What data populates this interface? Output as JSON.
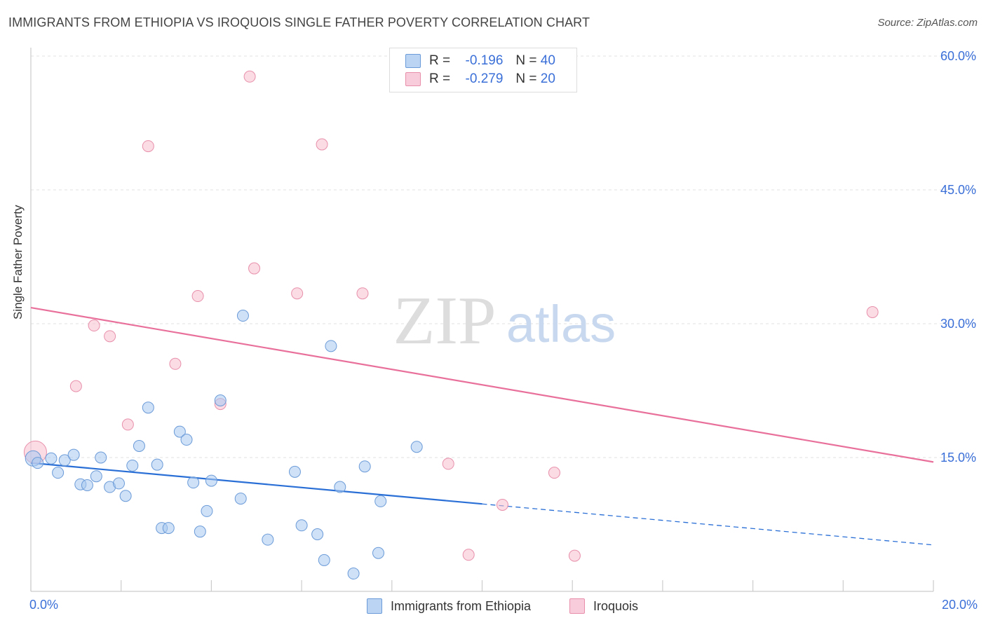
{
  "title": "IMMIGRANTS FROM ETHIOPIA VS IROQUOIS SINGLE FATHER POVERTY CORRELATION CHART",
  "source": "Source: ZipAtlas.com",
  "watermark": {
    "zip": "ZIP",
    "atlas": "atlas"
  },
  "legend": {
    "r_label": "R =",
    "n_label": "N =",
    "rows": [
      {
        "r": "-0.196",
        "n": "40"
      },
      {
        "r": "-0.279",
        "n": "20"
      }
    ]
  },
  "colors": {
    "blue_fill": "#a8c8f0",
    "blue_stroke": "#6b9bd8",
    "blue_line": "#2a6fd6",
    "pink_fill": "#f7bfd0",
    "pink_stroke": "#e890ab",
    "pink_line": "#e8709a",
    "axis_text": "#3a6fd8"
  },
  "chart_data": {
    "type": "scatter",
    "title": "IMMIGRANTS FROM ETHIOPIA VS IROQUOIS SINGLE FATHER POVERTY CORRELATION CHART",
    "xlabel": "",
    "ylabel": "Single Father Poverty",
    "xlim": [
      0,
      20
    ],
    "ylim": [
      0,
      63
    ],
    "x_tick_labels": [
      "0.0%",
      "20.0%"
    ],
    "y_ticks": [
      15,
      30,
      45,
      60
    ],
    "y_tick_labels": [
      "15.0%",
      "30.0%",
      "45.0%",
      "60.0%"
    ],
    "grid": true,
    "legend_position": "bottom",
    "series": [
      {
        "name": "Immigrants from Ethiopia",
        "r": -0.196,
        "n": 40,
        "points": [
          [
            0.05,
            14.9
          ],
          [
            0.15,
            14.4
          ],
          [
            0.45,
            14.9
          ],
          [
            0.6,
            13.3
          ],
          [
            0.75,
            14.7
          ],
          [
            0.95,
            15.3
          ],
          [
            1.1,
            12.0
          ],
          [
            1.25,
            11.9
          ],
          [
            1.45,
            12.9
          ],
          [
            1.55,
            15.0
          ],
          [
            1.75,
            11.7
          ],
          [
            1.95,
            12.1
          ],
          [
            2.1,
            10.7
          ],
          [
            2.25,
            14.1
          ],
          [
            2.4,
            16.3
          ],
          [
            2.6,
            20.6
          ],
          [
            2.8,
            14.2
          ],
          [
            2.9,
            7.1
          ],
          [
            3.05,
            7.1
          ],
          [
            3.3,
            17.9
          ],
          [
            3.45,
            17.0
          ],
          [
            3.6,
            12.2
          ],
          [
            3.75,
            6.7
          ],
          [
            3.9,
            9.0
          ],
          [
            4.0,
            12.4
          ],
          [
            4.2,
            21.4
          ],
          [
            4.65,
            10.4
          ],
          [
            4.7,
            30.9
          ],
          [
            5.25,
            5.8
          ],
          [
            5.85,
            13.4
          ],
          [
            6.0,
            7.4
          ],
          [
            6.35,
            6.4
          ],
          [
            6.5,
            3.5
          ],
          [
            6.65,
            27.5
          ],
          [
            6.85,
            11.7
          ],
          [
            7.15,
            2.0
          ],
          [
            7.4,
            14.0
          ],
          [
            7.7,
            4.3
          ],
          [
            7.75,
            10.1
          ],
          [
            8.55,
            16.2
          ]
        ],
        "trend": {
          "x": [
            0,
            10
          ],
          "y": [
            14.4,
            9.8
          ]
        },
        "trend_extension": {
          "x": [
            10,
            20
          ],
          "y": [
            9.8,
            5.2
          ]
        }
      },
      {
        "name": "Iroquois",
        "r": -0.279,
        "n": 20,
        "points": [
          [
            0.1,
            15.6
          ],
          [
            1.0,
            23.0
          ],
          [
            1.4,
            29.8
          ],
          [
            1.75,
            28.6
          ],
          [
            2.15,
            18.7
          ],
          [
            2.6,
            49.9
          ],
          [
            3.2,
            25.5
          ],
          [
            3.7,
            33.1
          ],
          [
            4.2,
            21.0
          ],
          [
            4.85,
            57.7
          ],
          [
            4.95,
            36.2
          ],
          [
            5.9,
            33.4
          ],
          [
            6.45,
            50.1
          ],
          [
            7.35,
            33.4
          ],
          [
            9.25,
            14.3
          ],
          [
            9.7,
            4.1
          ],
          [
            10.45,
            9.7
          ],
          [
            11.6,
            13.3
          ],
          [
            12.05,
            4.0
          ],
          [
            18.65,
            31.3
          ]
        ],
        "trend": {
          "x": [
            0,
            20
          ],
          "y": [
            31.8,
            14.5
          ]
        }
      }
    ]
  }
}
